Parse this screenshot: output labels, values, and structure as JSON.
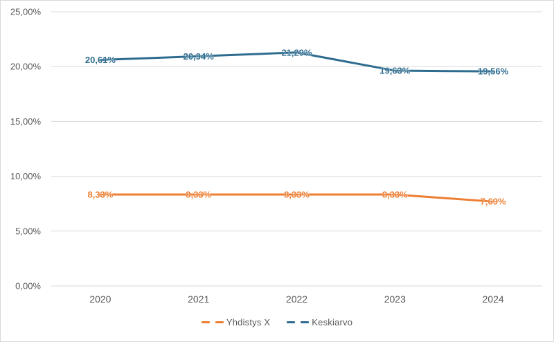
{
  "chart_data": {
    "type": "line",
    "title": "",
    "xlabel": "",
    "ylabel": "",
    "categories": [
      "2020",
      "2021",
      "2022",
      "2023",
      "2024"
    ],
    "series": [
      {
        "name": "Yhdistys X",
        "color": "#ED7D31",
        "values": [
          8.33,
          8.33,
          8.33,
          8.33,
          7.69
        ],
        "data_labels": [
          "8,33%",
          "8,33%",
          "8,33%",
          "8,33%",
          "7,69%"
        ]
      },
      {
        "name": "Keskiarvo",
        "color": "#2E6C8F",
        "values": [
          20.61,
          20.94,
          21.29,
          19.63,
          19.56
        ],
        "data_labels": [
          "20,61%",
          "20,94%",
          "21,29%",
          "19,63%",
          "19,56%"
        ]
      }
    ],
    "y_axis": {
      "min": 0,
      "max": 25,
      "step": 5,
      "tick_labels": [
        "0,00%",
        "5,00%",
        "10,00%",
        "15,00%",
        "20,00%",
        "25,00%"
      ]
    },
    "grid": true,
    "legend_position": "bottom"
  },
  "colors": {
    "background": "#FFFFFF",
    "border": "#D9D9D9",
    "gridline": "#D9D9D9",
    "axis_text": "#595959"
  }
}
